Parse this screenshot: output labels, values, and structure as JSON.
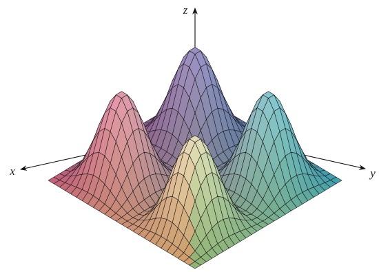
{
  "chart_data": {
    "type": "surface",
    "x_label": "x",
    "y_label": "y",
    "z_label": "z"
  }
}
